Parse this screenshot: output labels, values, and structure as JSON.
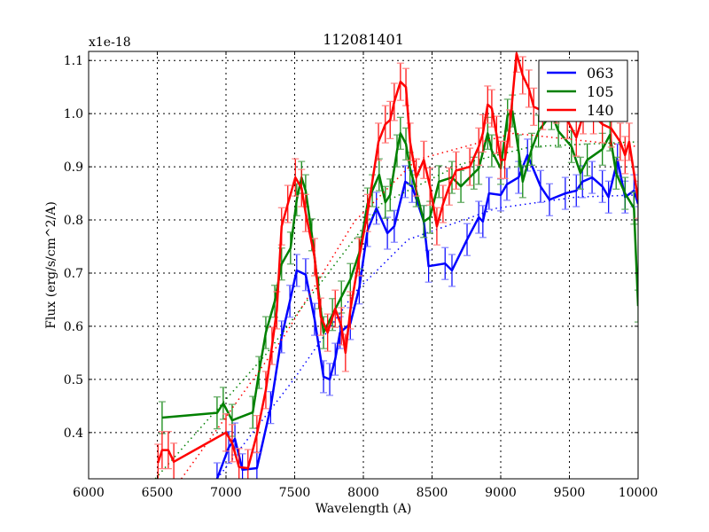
{
  "chart_data": {
    "type": "line",
    "title": "112081401",
    "xlabel": "Wavelength (A)",
    "ylabel": "Flux (erg/s/cm^2/A)",
    "y_offset_label": "x1e-18",
    "xlim": [
      6000,
      10000
    ],
    "ylim": [
      0.313,
      1.117
    ],
    "xticks": [
      6000,
      6500,
      7000,
      7500,
      8000,
      8500,
      9000,
      9500,
      10000
    ],
    "yticks": [
      0.4,
      0.5,
      0.6,
      0.7,
      0.8,
      0.9,
      1.0,
      1.1
    ],
    "ytick_labels": [
      "0.4",
      "0.5",
      "0.6",
      "0.7",
      "0.8",
      "0.9",
      "1.0",
      "1.1"
    ],
    "grid": true,
    "legend_position": "top-right",
    "series": [
      {
        "name": "063",
        "color": "#0000ff",
        "yerr": 0.03,
        "x": [
          6935,
          7020,
          7065,
          7120,
          7225,
          7325,
          7405,
          7465,
          7515,
          7580,
          7645,
          7710,
          7755,
          7795,
          7830,
          7905,
          7970,
          8030,
          8095,
          8175,
          8225,
          8305,
          8355,
          8440,
          8475,
          8595,
          8645,
          8755,
          8840,
          8870,
          8915,
          9000,
          9045,
          9130,
          9195,
          9290,
          9355,
          9470,
          9550,
          9595,
          9665,
          9740,
          9785,
          9850,
          9905,
          9970,
          10000
        ],
        "y": [
          0.313,
          0.372,
          0.388,
          0.33,
          0.333,
          0.447,
          0.58,
          0.647,
          0.705,
          0.697,
          0.613,
          0.505,
          0.5,
          0.538,
          0.588,
          0.605,
          0.672,
          0.78,
          0.822,
          0.775,
          0.788,
          0.872,
          0.863,
          0.797,
          0.713,
          0.718,
          0.705,
          0.763,
          0.805,
          0.797,
          0.85,
          0.847,
          0.867,
          0.88,
          0.922,
          0.863,
          0.838,
          0.85,
          0.855,
          0.872,
          0.88,
          0.863,
          0.843,
          0.913,
          0.843,
          0.855,
          0.83
        ],
        "fit": {
          "x": [
            6935,
            7485,
            7935,
            8325,
            8970,
            9550,
            10000
          ],
          "y": [
            0.313,
            0.497,
            0.663,
            0.763,
            0.822,
            0.843,
            0.847
          ]
        }
      },
      {
        "name": "105",
        "color": "#008000",
        "yerr": 0.03,
        "x": [
          6535,
          6935,
          6980,
          7045,
          7195,
          7240,
          7290,
          7355,
          7405,
          7470,
          7515,
          7550,
          7580,
          7625,
          7675,
          7710,
          7775,
          7840,
          7905,
          7970,
          8030,
          8065,
          8115,
          8160,
          8195,
          8245,
          8270,
          8310,
          8340,
          8385,
          8440,
          8485,
          8550,
          8645,
          8710,
          8805,
          8840,
          8905,
          8935,
          9000,
          9050,
          9085,
          9130,
          9160,
          9225,
          9275,
          9370,
          9420,
          9515,
          9580,
          9630,
          9740,
          9795,
          9840,
          9905,
          9970,
          10000
        ],
        "y": [
          0.428,
          0.437,
          0.455,
          0.423,
          0.438,
          0.513,
          0.588,
          0.647,
          0.717,
          0.747,
          0.838,
          0.88,
          0.855,
          0.772,
          0.663,
          0.588,
          0.622,
          0.655,
          0.688,
          0.738,
          0.83,
          0.855,
          0.885,
          0.833,
          0.847,
          0.93,
          0.963,
          0.943,
          0.897,
          0.855,
          0.797,
          0.805,
          0.872,
          0.88,
          0.863,
          0.888,
          0.897,
          0.963,
          0.93,
          0.897,
          0.997,
          1.005,
          0.93,
          0.872,
          0.933,
          0.967,
          1.0,
          0.967,
          0.938,
          0.888,
          0.913,
          0.933,
          0.96,
          0.888,
          0.85,
          0.822,
          0.638
        ],
        "fit": {
          "x": [
            6485,
            7290,
            8130,
            8710,
            9225,
            10000
          ],
          "y": [
            0.313,
            0.547,
            0.83,
            0.905,
            0.938,
            0.947
          ]
        }
      },
      {
        "name": "140",
        "color": "#ff0000",
        "yerr": 0.035,
        "x": [
          6505,
          6535,
          6580,
          6620,
          7000,
          7045,
          7095,
          7160,
          7225,
          7290,
          7335,
          7370,
          7405,
          7450,
          7505,
          7550,
          7580,
          7645,
          7690,
          7740,
          7795,
          7840,
          7870,
          7905,
          7970,
          8030,
          8110,
          8160,
          8195,
          8225,
          8270,
          8310,
          8340,
          8385,
          8440,
          8485,
          8535,
          8580,
          8625,
          8675,
          8775,
          8840,
          8870,
          8905,
          8935,
          8970,
          9000,
          9030,
          9065,
          9115,
          9160,
          9205,
          9240,
          9305,
          9355,
          9405,
          9450,
          9485,
          9550,
          9600,
          9675,
          9740,
          9805,
          9870,
          9905,
          9935,
          10000
        ],
        "y": [
          0.343,
          0.367,
          0.367,
          0.345,
          0.4,
          0.38,
          0.335,
          0.333,
          0.397,
          0.48,
          0.563,
          0.63,
          0.788,
          0.83,
          0.88,
          0.86,
          0.813,
          0.73,
          0.618,
          0.588,
          0.633,
          0.6,
          0.55,
          0.63,
          0.73,
          0.813,
          0.947,
          0.98,
          0.988,
          1.022,
          1.06,
          1.05,
          0.947,
          0.88,
          0.913,
          0.863,
          0.788,
          0.83,
          0.863,
          0.893,
          0.9,
          0.938,
          0.963,
          1.017,
          1.01,
          0.96,
          0.913,
          0.913,
          0.972,
          1.113,
          1.072,
          1.047,
          1.013,
          1.005,
          1.033,
          1.017,
          1.038,
          0.988,
          0.955,
          0.997,
          0.997,
          0.98,
          0.972,
          0.947,
          0.922,
          0.947,
          0.838
        ],
        "fit": {
          "x": [
            6675,
            7420,
            7935,
            8385,
            9095,
            10000
          ],
          "y": [
            0.313,
            0.58,
            0.797,
            0.913,
            0.963,
            0.938
          ]
        }
      }
    ]
  }
}
